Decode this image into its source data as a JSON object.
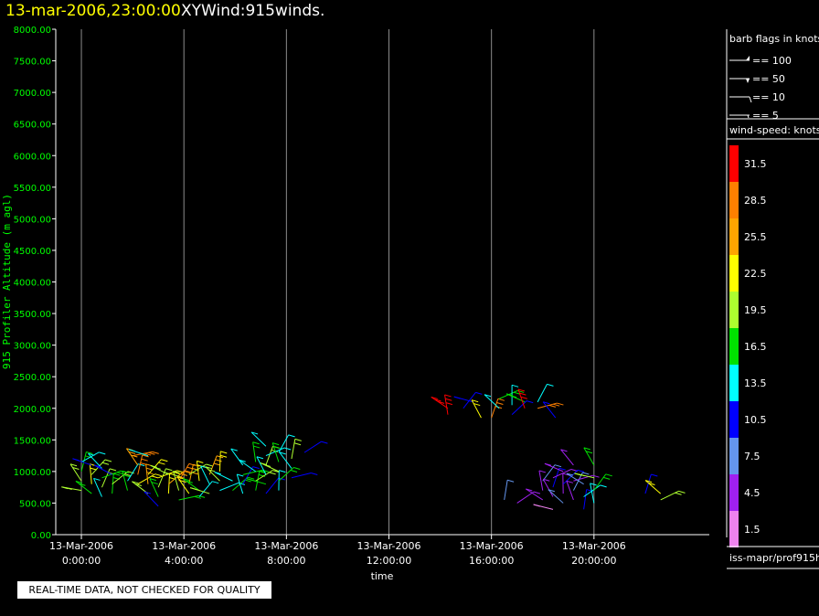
{
  "header": {
    "datetime": "13-mar-2006,23:00:00",
    "product": "XYWind:915winds."
  },
  "disclaimer": "REAL-TIME DATA, NOT CHECKED FOR QUALITY",
  "barb_legend": {
    "title": "barb flags in knots",
    "items": [
      "== 100",
      "== 50",
      "== 10",
      "== 5"
    ]
  },
  "source_label": "iss-mapr/prof915h",
  "colors": {
    "axis_y": "#00ff00",
    "axis_x": "#00ff00",
    "gridline": "#8c8c8c",
    "title_date": "#ffff00"
  },
  "chart_data": {
    "type": "scatter",
    "title": "XYWind:915winds.",
    "xlabel": "time",
    "ylabel": "915 Profiler Altitude (m agl)",
    "y_ticks": [
      "0.00",
      "500.00",
      "1000.00",
      "1500.00",
      "2000.00",
      "2500.00",
      "3000.00",
      "3500.00",
      "4000.00",
      "4500.00",
      "5000.00",
      "5500.00",
      "6000.00",
      "6500.00",
      "7000.00",
      "7500.00",
      "8000.00"
    ],
    "ylim": [
      0,
      8000
    ],
    "xlim_hours": [
      -1,
      24.5
    ],
    "x_ticks": [
      {
        "hour": 0,
        "date": "13-Mar-2006",
        "time": "0:00:00"
      },
      {
        "hour": 4,
        "date": "13-Mar-2006",
        "time": "4:00:00"
      },
      {
        "hour": 8,
        "date": "13-Mar-2006",
        "time": "8:00:00"
      },
      {
        "hour": 12,
        "date": "13-Mar-2006",
        "time": "12:00:00"
      },
      {
        "hour": 16,
        "date": "13-Mar-2006",
        "time": "16:00:00"
      },
      {
        "hour": 20,
        "date": "13-Mar-2006",
        "time": "20:00:00"
      }
    ],
    "vertical_grid": true,
    "colorbar": {
      "title": "wind-speed: knots",
      "bins": [
        {
          "label": "31.5",
          "color": "#ff0000"
        },
        {
          "label": "28.5",
          "color": "#ff8000"
        },
        {
          "label": "25.5",
          "color": "#ffa500"
        },
        {
          "label": "22.5",
          "color": "#ffff00"
        },
        {
          "label": "19.5",
          "color": "#adff2f"
        },
        {
          "label": "16.5",
          "color": "#00e000"
        },
        {
          "label": "13.5",
          "color": "#00ffff"
        },
        {
          "label": "10.5",
          "color": "#0000ff"
        },
        {
          "label": "7.5",
          "color": "#6495ed"
        },
        {
          "label": "4.5",
          "color": "#a020f0"
        },
        {
          "label": "1.5",
          "color": "#ee82ee"
        }
      ]
    },
    "barbs": [
      {
        "hour": 0.0,
        "alt": 700,
        "speed": 19.5
      },
      {
        "hour": 0.0,
        "alt": 850,
        "speed": 19.5
      },
      {
        "hour": 0.0,
        "alt": 1000,
        "speed": 16.5
      },
      {
        "hour": 0.0,
        "alt": 1150,
        "speed": 13.5
      },
      {
        "hour": 0.4,
        "alt": 650,
        "speed": 16.5
      },
      {
        "hour": 0.4,
        "alt": 800,
        "speed": 22.5
      },
      {
        "hour": 0.4,
        "alt": 950,
        "speed": 19.5
      },
      {
        "hour": 0.4,
        "alt": 1100,
        "speed": 10.5
      },
      {
        "hour": 0.8,
        "alt": 600,
        "speed": 13.5
      },
      {
        "hour": 0.8,
        "alt": 750,
        "speed": 19.5
      },
      {
        "hour": 0.8,
        "alt": 900,
        "speed": 16.5
      },
      {
        "hour": 0.8,
        "alt": 1050,
        "speed": 13.5
      },
      {
        "hour": 1.2,
        "alt": 650,
        "speed": 16.5
      },
      {
        "hour": 1.2,
        "alt": 800,
        "speed": 19.5
      },
      {
        "hour": 1.2,
        "alt": 950,
        "speed": 10.5
      },
      {
        "hour": 1.8,
        "alt": 700,
        "speed": 16.5
      },
      {
        "hour": 1.8,
        "alt": 850,
        "speed": 13.5
      },
      {
        "hour": 2.0,
        "alt": 1250,
        "speed": 28.5
      },
      {
        "hour": 2.2,
        "alt": 1100,
        "speed": 25.5
      },
      {
        "hour": 2.2,
        "alt": 950,
        "speed": 28.5
      },
      {
        "hour": 2.2,
        "alt": 800,
        "speed": 22.5
      },
      {
        "hour": 2.6,
        "alt": 650,
        "speed": 19.5
      },
      {
        "hour": 2.6,
        "alt": 800,
        "speed": 25.5
      },
      {
        "hour": 2.6,
        "alt": 950,
        "speed": 22.5
      },
      {
        "hour": 2.6,
        "alt": 1250,
        "speed": 13.5
      },
      {
        "hour": 3.0,
        "alt": 600,
        "speed": 16.5
      },
      {
        "hour": 3.0,
        "alt": 750,
        "speed": 19.5
      },
      {
        "hour": 3.0,
        "alt": 900,
        "speed": 22.5
      },
      {
        "hour": 3.0,
        "alt": 450,
        "speed": 10.5
      },
      {
        "hour": 3.4,
        "alt": 650,
        "speed": 22.5
      },
      {
        "hour": 3.4,
        "alt": 800,
        "speed": 25.5
      },
      {
        "hour": 3.4,
        "alt": 950,
        "speed": 19.5
      },
      {
        "hour": 3.8,
        "alt": 700,
        "speed": 19.5
      },
      {
        "hour": 3.8,
        "alt": 850,
        "speed": 28.5
      },
      {
        "hour": 3.8,
        "alt": 550,
        "speed": 16.5
      },
      {
        "hour": 4.2,
        "alt": 650,
        "speed": 22.5
      },
      {
        "hour": 4.2,
        "alt": 800,
        "speed": 25.5
      },
      {
        "hour": 4.2,
        "alt": 950,
        "speed": 19.5
      },
      {
        "hour": 4.6,
        "alt": 700,
        "speed": 16.5
      },
      {
        "hour": 4.6,
        "alt": 850,
        "speed": 22.5
      },
      {
        "hour": 4.6,
        "alt": 600,
        "speed": 13.5
      },
      {
        "hour": 5.0,
        "alt": 650,
        "speed": 19.5
      },
      {
        "hour": 5.0,
        "alt": 800,
        "speed": 13.5
      },
      {
        "hour": 5.0,
        "alt": 950,
        "speed": 25.5
      },
      {
        "hour": 5.4,
        "alt": 700,
        "speed": 13.5
      },
      {
        "hour": 5.4,
        "alt": 850,
        "speed": 19.5
      },
      {
        "hour": 5.4,
        "alt": 1000,
        "speed": 22.5
      },
      {
        "hour": 5.9,
        "alt": 700,
        "speed": 16.5
      },
      {
        "hour": 5.9,
        "alt": 850,
        "speed": 13.5
      },
      {
        "hour": 6.3,
        "alt": 650,
        "speed": 13.5
      },
      {
        "hour": 6.3,
        "alt": 800,
        "speed": 10.5
      },
      {
        "hour": 6.3,
        "alt": 950,
        "speed": 16.5
      },
      {
        "hour": 6.3,
        "alt": 1100,
        "speed": 13.5
      },
      {
        "hour": 6.8,
        "alt": 700,
        "speed": 16.5
      },
      {
        "hour": 6.8,
        "alt": 850,
        "speed": 19.5
      },
      {
        "hour": 6.8,
        "alt": 1000,
        "speed": 13.5
      },
      {
        "hour": 6.8,
        "alt": 1150,
        "speed": 16.5
      },
      {
        "hour": 7.2,
        "alt": 650,
        "speed": 10.5
      },
      {
        "hour": 7.2,
        "alt": 800,
        "speed": 16.5
      },
      {
        "hour": 7.2,
        "alt": 950,
        "speed": 13.5
      },
      {
        "hour": 7.2,
        "alt": 1100,
        "speed": 19.5
      },
      {
        "hour": 7.2,
        "alt": 1250,
        "speed": 13.5
      },
      {
        "hour": 7.2,
        "alt": 1400,
        "speed": 13.5
      },
      {
        "hour": 7.7,
        "alt": 700,
        "speed": 13.5
      },
      {
        "hour": 7.7,
        "alt": 850,
        "speed": 16.5
      },
      {
        "hour": 7.7,
        "alt": 1000,
        "speed": 19.5
      },
      {
        "hour": 7.7,
        "alt": 1150,
        "speed": 16.5
      },
      {
        "hour": 7.7,
        "alt": 1300,
        "speed": 13.5
      },
      {
        "hour": 8.2,
        "alt": 900,
        "speed": 10.5
      },
      {
        "hour": 8.2,
        "alt": 1050,
        "speed": 13.5
      },
      {
        "hour": 8.2,
        "alt": 1200,
        "speed": 19.5
      },
      {
        "hour": 8.7,
        "alt": 1300,
        "speed": 10.5
      },
      {
        "hour": 14.3,
        "alt": 2000,
        "speed": 31.5
      },
      {
        "hour": 14.3,
        "alt": 1900,
        "speed": 31.5
      },
      {
        "hour": 14.9,
        "alt": 2000,
        "speed": 10.5
      },
      {
        "hour": 15.3,
        "alt": 2100,
        "speed": 10.5
      },
      {
        "hour": 15.6,
        "alt": 1850,
        "speed": 22.5
      },
      {
        "hour": 16.0,
        "alt": 1850,
        "speed": 28.5
      },
      {
        "hour": 16.3,
        "alt": 2150,
        "speed": 16.5
      },
      {
        "hour": 16.3,
        "alt": 2000,
        "speed": 13.5
      },
      {
        "hour": 16.8,
        "alt": 2050,
        "speed": 13.5
      },
      {
        "hour": 16.8,
        "alt": 1900,
        "speed": 10.5
      },
      {
        "hour": 17.3,
        "alt": 2100,
        "speed": 16.5
      },
      {
        "hour": 17.3,
        "alt": 2000,
        "speed": 31.5
      },
      {
        "hour": 17.8,
        "alt": 2100,
        "speed": 13.5
      },
      {
        "hour": 17.8,
        "alt": 2000,
        "speed": 28.5
      },
      {
        "hour": 18.5,
        "alt": 1850,
        "speed": 10.5
      },
      {
        "hour": 16.5,
        "alt": 550,
        "speed": 7.5
      },
      {
        "hour": 17.0,
        "alt": 500,
        "speed": 4.5
      },
      {
        "hour": 18.0,
        "alt": 550,
        "speed": 4.5
      },
      {
        "hour": 18.0,
        "alt": 700,
        "speed": 4.5
      },
      {
        "hour": 18.0,
        "alt": 850,
        "speed": 7.5
      },
      {
        "hour": 18.4,
        "alt": 400,
        "speed": 1.5
      },
      {
        "hour": 18.4,
        "alt": 600,
        "speed": 4.5
      },
      {
        "hour": 18.4,
        "alt": 750,
        "speed": 10.5
      },
      {
        "hour": 18.4,
        "alt": 900,
        "speed": 4.5
      },
      {
        "hour": 18.8,
        "alt": 500,
        "speed": 7.5
      },
      {
        "hour": 18.8,
        "alt": 650,
        "speed": 4.5
      },
      {
        "hour": 18.8,
        "alt": 800,
        "speed": 10.5
      },
      {
        "hour": 18.8,
        "alt": 1000,
        "speed": 4.5
      },
      {
        "hour": 19.2,
        "alt": 550,
        "speed": 4.5
      },
      {
        "hour": 19.2,
        "alt": 700,
        "speed": 7.5
      },
      {
        "hour": 19.2,
        "alt": 850,
        "speed": 4.5
      },
      {
        "hour": 19.2,
        "alt": 1100,
        "speed": 4.5
      },
      {
        "hour": 19.6,
        "alt": 400,
        "speed": 10.5
      },
      {
        "hour": 19.6,
        "alt": 600,
        "speed": 13.5
      },
      {
        "hour": 19.6,
        "alt": 800,
        "speed": 7.5
      },
      {
        "hour": 20.0,
        "alt": 500,
        "speed": 13.5
      },
      {
        "hour": 20.0,
        "alt": 700,
        "speed": 16.5
      },
      {
        "hour": 20.0,
        "alt": 900,
        "speed": 19.5
      },
      {
        "hour": 20.0,
        "alt": 1100,
        "speed": 16.5
      },
      {
        "hour": 22.0,
        "alt": 650,
        "speed": 10.5
      },
      {
        "hour": 22.6,
        "alt": 550,
        "speed": 19.5
      },
      {
        "hour": 22.6,
        "alt": 650,
        "speed": 22.5
      }
    ]
  }
}
